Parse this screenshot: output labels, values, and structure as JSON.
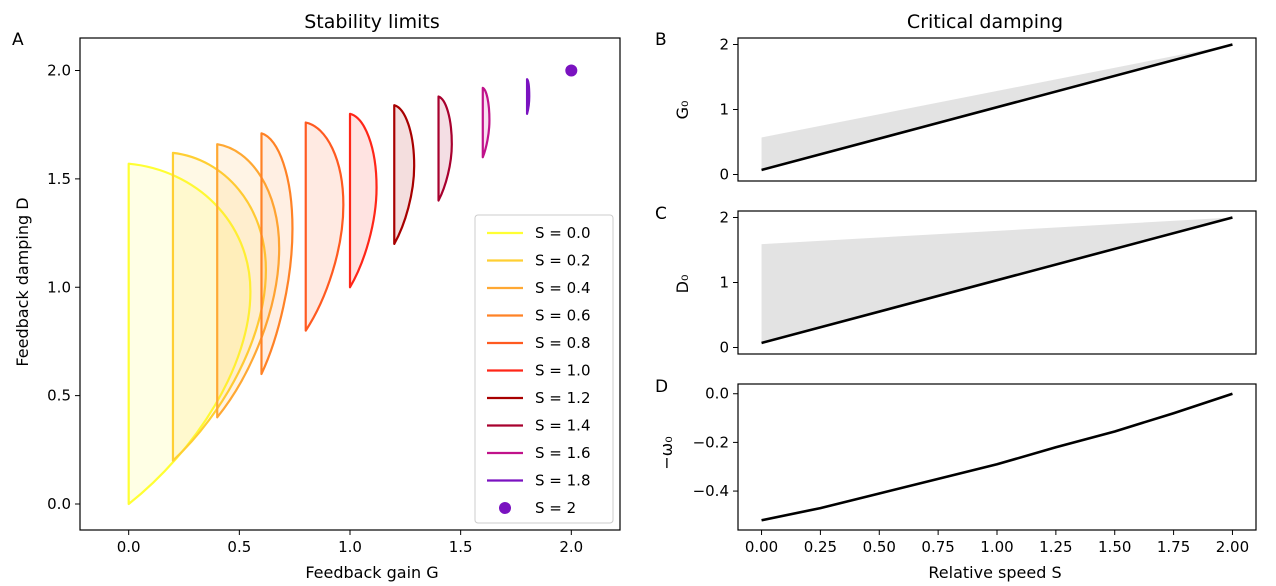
{
  "chart_data": [
    {
      "panel": "A",
      "type": "line",
      "title": "Stability limits",
      "xlabel": "Feedback gain G",
      "ylabel": "Feedback damping D",
      "xlim": [
        -0.22,
        2.22
      ],
      "ylim": [
        -0.12,
        2.15
      ],
      "xticks": [
        "0.0",
        "0.5",
        "1.0",
        "1.5",
        "2.0"
      ],
      "yticks": [
        "0.0",
        "0.5",
        "1.0",
        "1.5",
        "2.0"
      ],
      "legend_position": "lower right",
      "series": [
        {
          "name": "S = 0.0",
          "color": "#ffff33",
          "left_x": 0.0,
          "bottom_y": 0.0,
          "top_y": 1.57,
          "nose_x": 0.55,
          "nose_y": 0.98
        },
        {
          "name": "S = 0.2",
          "color": "#ffcf33",
          "left_x": 0.2,
          "bottom_y": 0.2,
          "top_y": 1.62,
          "nose_x": 0.62,
          "nose_y": 1.08
        },
        {
          "name": "S = 0.4",
          "color": "#ffa833",
          "left_x": 0.4,
          "bottom_y": 0.4,
          "top_y": 1.66,
          "nose_x": 0.68,
          "nose_y": 1.18
        },
        {
          "name": "S = 0.6",
          "color": "#ff8226",
          "left_x": 0.6,
          "bottom_y": 0.6,
          "top_y": 1.71,
          "nose_x": 0.74,
          "nose_y": 1.27
        },
        {
          "name": "S = 0.8",
          "color": "#ff5a20",
          "left_x": 0.8,
          "bottom_y": 0.8,
          "top_y": 1.76,
          "nose_x": 0.97,
          "nose_y": 1.38
        },
        {
          "name": "S = 1.0",
          "color": "#ff2618",
          "left_x": 1.0,
          "bottom_y": 1.0,
          "top_y": 1.8,
          "nose_x": 1.12,
          "nose_y": 1.46
        },
        {
          "name": "S = 1.2",
          "color": "#a80000",
          "left_x": 1.2,
          "bottom_y": 1.2,
          "top_y": 1.84,
          "nose_x": 1.29,
          "nose_y": 1.56
        },
        {
          "name": "S = 1.4",
          "color": "#a8002e",
          "left_x": 1.4,
          "bottom_y": 1.4,
          "top_y": 1.88,
          "nose_x": 1.46,
          "nose_y": 1.66
        },
        {
          "name": "S = 1.6",
          "color": "#c0128a",
          "left_x": 1.6,
          "bottom_y": 1.6,
          "top_y": 1.92,
          "nose_x": 1.63,
          "nose_y": 1.77
        },
        {
          "name": "S = 1.8",
          "color": "#7a12c0",
          "left_x": 1.8,
          "bottom_y": 1.8,
          "top_y": 1.96,
          "nose_x": 1.81,
          "nose_y": 1.88
        },
        {
          "name": "S = 2",
          "color": "#7a12c0",
          "type": "scatter",
          "x": [
            2.0
          ],
          "y": [
            2.0
          ]
        }
      ]
    },
    {
      "panel": "B",
      "type": "area",
      "title": "Critical damping",
      "xlabel": "",
      "ylabel": "G₀",
      "xlim": [
        -0.1,
        2.1
      ],
      "ylim": [
        -0.1,
        2.1
      ],
      "yticks": [
        "0",
        "1",
        "2"
      ],
      "line": {
        "x": [
          0.0,
          2.0
        ],
        "y": [
          0.07,
          2.0
        ]
      },
      "band": {
        "x": [
          0.0,
          2.0
        ],
        "lower": [
          0.07,
          2.0
        ],
        "upper": [
          0.57,
          2.0
        ]
      }
    },
    {
      "panel": "C",
      "type": "area",
      "xlabel": "",
      "ylabel": "D₀",
      "xlim": [
        -0.1,
        2.1
      ],
      "ylim": [
        -0.1,
        2.1
      ],
      "yticks": [
        "0",
        "1",
        "2"
      ],
      "line": {
        "x": [
          0.0,
          2.0
        ],
        "y": [
          0.07,
          2.0
        ]
      },
      "band": {
        "x": [
          0.0,
          2.0
        ],
        "lower": [
          0.07,
          2.0
        ],
        "upper": [
          1.59,
          2.0
        ]
      }
    },
    {
      "panel": "D",
      "type": "line",
      "xlabel": "Relative speed S",
      "ylabel": "−ω₀",
      "xlim": [
        -0.1,
        2.1
      ],
      "ylim": [
        -0.56,
        0.04
      ],
      "xticks": [
        "0.00",
        "0.25",
        "0.50",
        "0.75",
        "1.00",
        "1.25",
        "1.50",
        "1.75",
        "2.00"
      ],
      "yticks": [
        "0.0",
        "−0.2",
        "−0.4"
      ],
      "line": {
        "x": [
          0.0,
          0.25,
          0.5,
          0.75,
          1.0,
          1.25,
          1.5,
          1.75,
          2.0
        ],
        "y": [
          -0.52,
          -0.47,
          -0.41,
          -0.35,
          -0.29,
          -0.22,
          -0.155,
          -0.08,
          0.0
        ]
      }
    }
  ]
}
